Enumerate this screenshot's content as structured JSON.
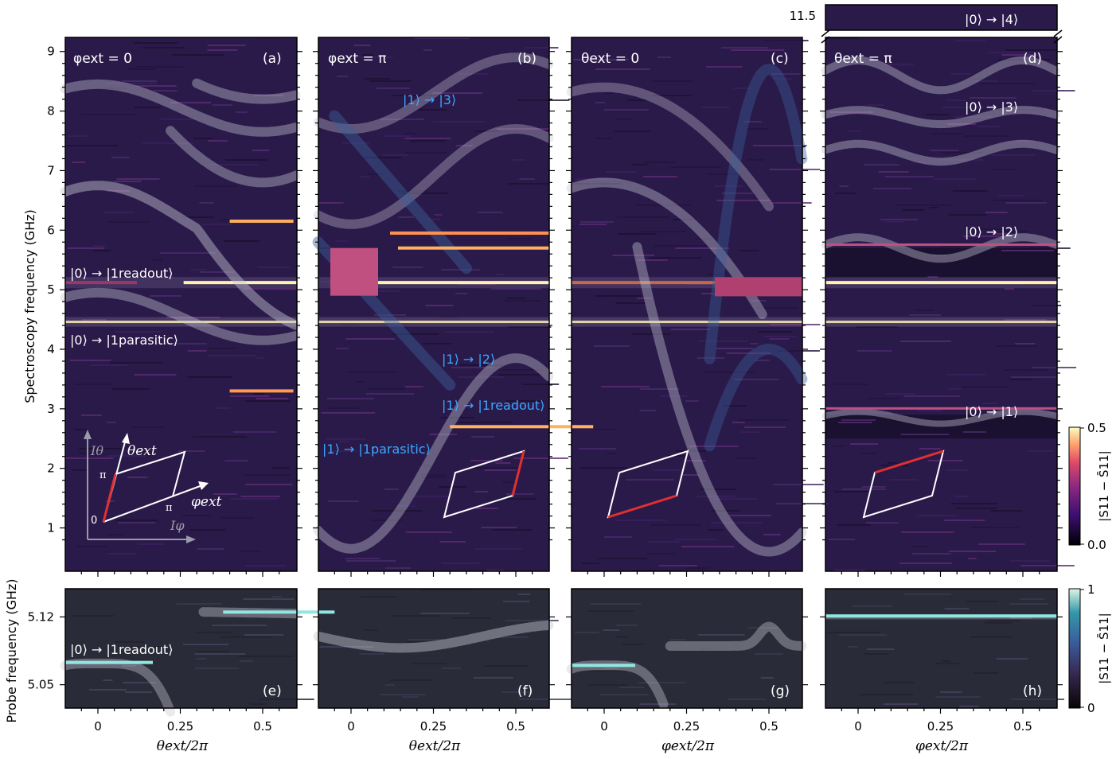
{
  "chart_data": {
    "type": "heatmap",
    "y_label_top": "Spectroscopy frequency (GHz)",
    "y_label_bottom": "Probe frequency (GHz)",
    "top_yticks": [
      "1",
      "2",
      "3",
      "4",
      "5",
      "6",
      "7",
      "8",
      "9"
    ],
    "bottom_yticks": [
      "5.05",
      "5.12"
    ],
    "inset_ytick": "11.5",
    "xticks": [
      "0",
      "0.25",
      "0.5"
    ],
    "xlabels": [
      "θext/2π",
      "θext/2π",
      "φext/2π",
      "φext/2π"
    ],
    "top_panels": [
      {
        "letter": "(a)",
        "condition": "φext = 0",
        "sweep": "theta"
      },
      {
        "letter": "(b)",
        "condition": "φext = π",
        "sweep": "theta"
      },
      {
        "letter": "(c)",
        "condition": "θext = 0",
        "sweep": "phi"
      },
      {
        "letter": "(d)",
        "condition": "θext = π",
        "sweep": "phi"
      }
    ],
    "bottom_panels": [
      "(e)",
      "(f)",
      "(g)",
      "(h)"
    ],
    "annotations_white": [
      "|0⟩ → |1readout⟩",
      "|0⟩ → |1parasitic⟩",
      "|0⟩ → |3⟩",
      "|0⟩ → |2⟩",
      "|0⟩ → |1⟩",
      "|0⟩ → |4⟩",
      "|0⟩ → |1readout⟩"
    ],
    "annotations_blue": [
      "|1⟩ → |3⟩",
      "|1⟩ → |2⟩",
      "|1⟩ → |1readout⟩",
      "|1⟩ → |1parasitic⟩"
    ],
    "inset_diagram": {
      "axes": [
        "Iθ",
        "Iφ"
      ],
      "arrows": [
        "θext",
        "φext"
      ],
      "marks": [
        "π",
        "π",
        "0"
      ]
    },
    "colorbar_top": {
      "label": "|S11 − S̄11|",
      "ticks": [
        "0.5",
        "0.0"
      ],
      "range": [
        0,
        0.5
      ]
    },
    "colorbar_bottom": {
      "label": "|S11 − S̄11|",
      "ticks": [
        "1",
        "0"
      ],
      "range": [
        0,
        1
      ]
    },
    "resonances_ghz": {
      "readout": 5.12,
      "parasitic": 4.46
    },
    "colors": {
      "bg_top": "#2a1a4a",
      "bg_bottom": "#2a2b38",
      "readout_line": "#fff1b0",
      "fit_curve": "#c8c8d4",
      "blue_curve": "#3a5f9a",
      "red_edge": "#e03030"
    }
  }
}
